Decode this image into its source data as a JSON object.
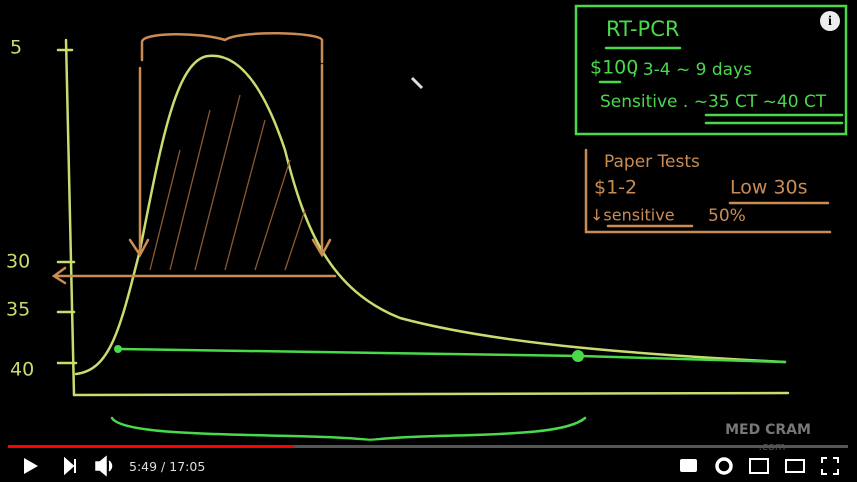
{
  "board": {
    "axis_labels": [
      "5",
      "30",
      "35",
      "40"
    ],
    "rt_pcr": {
      "title": "RT-PCR",
      "cost": "$100",
      "time": ", 3-4 ~ 9 days",
      "sensitivity": "Sensitive . ~35 CT ~40 CT"
    },
    "paper_tests": {
      "title": "Paper Tests",
      "cost": "$1-2",
      "ct": "Low 30s",
      "sensitivity": "↓sensitive",
      "percent": "50%"
    }
  },
  "watermark": {
    "brand": "MED CRAM",
    "domain": ".com"
  },
  "player": {
    "current_time": "5:49",
    "separator": " / ",
    "duration": "17:05"
  }
}
